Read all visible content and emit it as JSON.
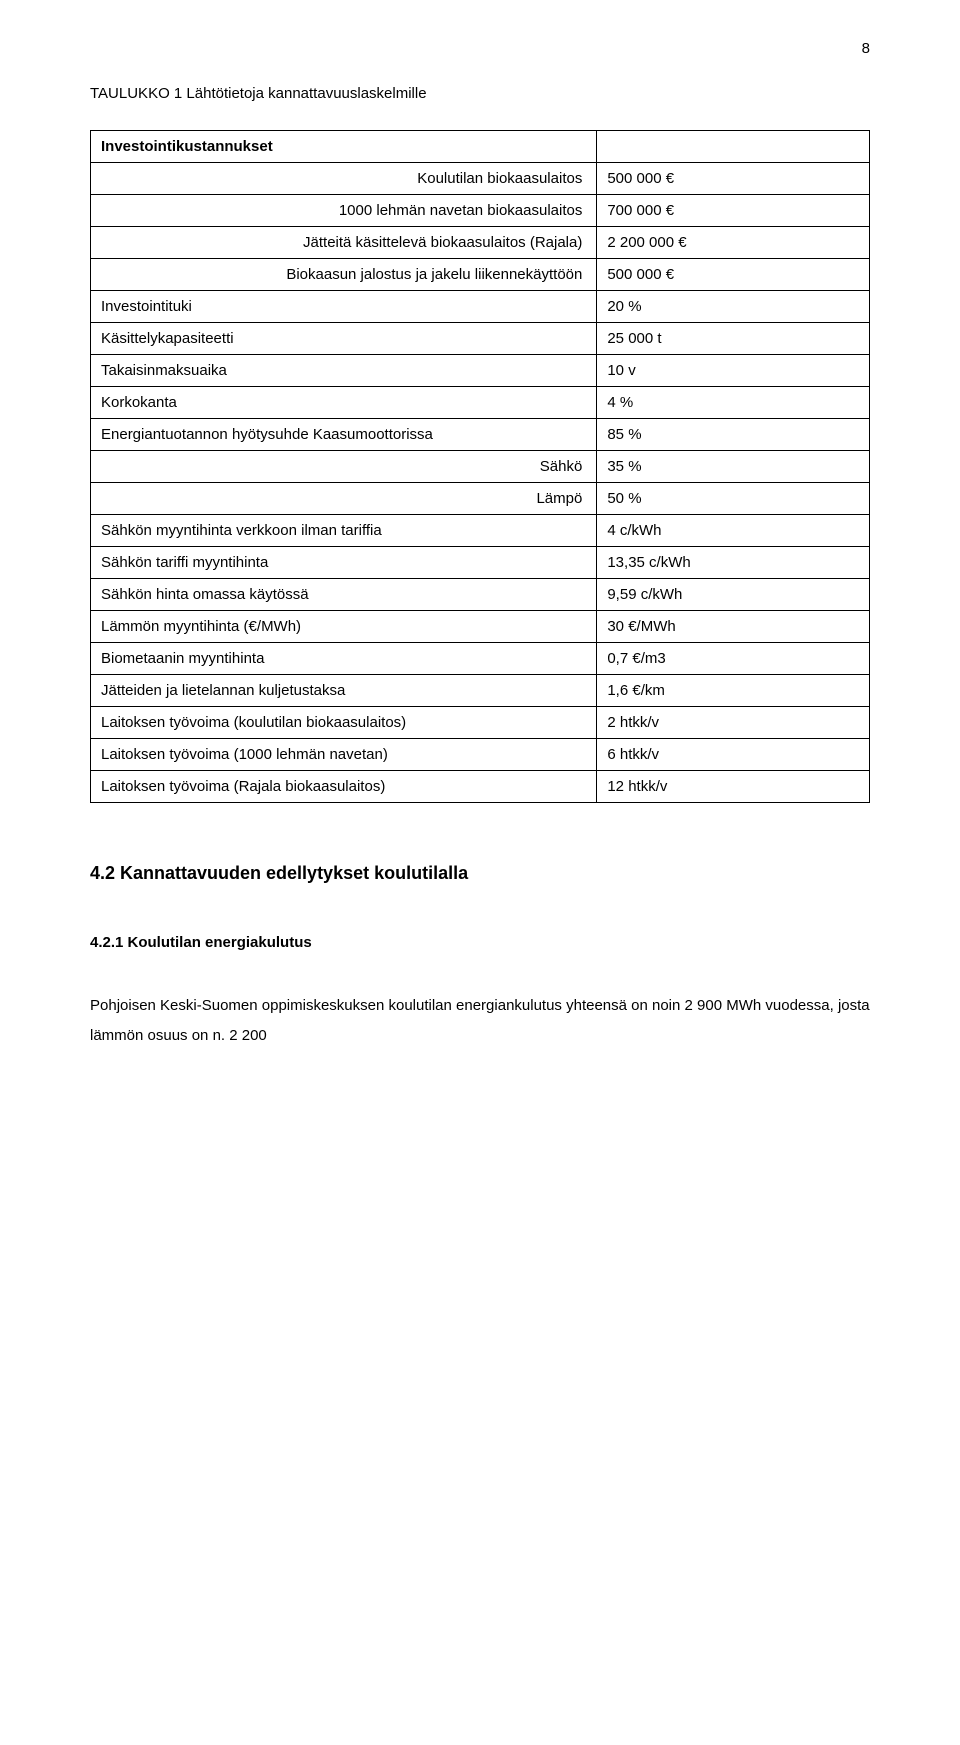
{
  "page_number": "8",
  "table_title": "TAULUKKO 1 Lähtötietoja kannattavuuslaskelmille",
  "table": {
    "header1": "Investointikustannukset",
    "rows": [
      {
        "label": "Koulutilan biokaasulaitos",
        "value": "500 000 €",
        "indent": true
      },
      {
        "label": "1000 lehmän navetan biokaasulaitos",
        "value": "700 000 €",
        "indent": true
      },
      {
        "label": "Jätteitä käsittelevä biokaasulaitos (Rajala)",
        "value": "2 200 000 €",
        "indent": true
      },
      {
        "label": "Biokaasun jalostus ja jakelu liikennekäyttöön",
        "value": "500 000 €",
        "indent": true
      },
      {
        "label": "Investointituki",
        "value": "20 %",
        "indent": false
      },
      {
        "label": "Käsittelykapasiteetti",
        "value": "25 000 t",
        "indent": false
      },
      {
        "label": "Takaisinmaksuaika",
        "value": "10 v",
        "indent": false
      },
      {
        "label": "Korkokanta",
        "value": "4 %",
        "indent": false
      },
      {
        "label": "Energiantuotannon hyötysuhde Kaasumoottorissa",
        "value": "85 %",
        "indent": false
      },
      {
        "label": "Sähkö",
        "value": "35 %",
        "indent": true
      },
      {
        "label": "Lämpö",
        "value": "50 %",
        "indent": true
      },
      {
        "label": "Sähkön myyntihinta verkkoon ilman tariffia",
        "value": "4 c/kWh",
        "indent": false
      },
      {
        "label": "Sähkön tariffi myyntihinta",
        "value": "13,35 c/kWh",
        "indent": false
      },
      {
        "label": "Sähkön hinta omassa käytössä",
        "value": "9,59 c/kWh",
        "indent": false
      },
      {
        "label": "Lämmön myyntihinta (€/MWh)",
        "value": "30 €/MWh",
        "indent": false
      },
      {
        "label": "Biometaanin myyntihinta",
        "value": "0,7 €/m3",
        "indent": false
      },
      {
        "label": "Jätteiden ja lietelannan kuljetustaksa",
        "value": "1,6 €/km",
        "indent": false
      },
      {
        "label": "Laitoksen työvoima (koulutilan biokaasulaitos)",
        "value": "2 htkk/v",
        "indent": false
      },
      {
        "label": "Laitoksen työvoima (1000 lehmän navetan)",
        "value": "6 htkk/v",
        "indent": false
      },
      {
        "label": "Laitoksen työvoima (Rajala biokaasulaitos)",
        "value": "12 htkk/v",
        "indent": false
      }
    ]
  },
  "heading_l2": "4.2  Kannattavuuden edellytykset koulutilalla",
  "heading_l3": "4.2.1  Koulutilan energiakulutus",
  "body_text": "Pohjoisen Keski-Suomen oppimiskeskuksen koulutilan energiankulutus yhteensä on noin 2 900 MWh vuodessa, josta lämmön osuus on n. 2 200"
}
